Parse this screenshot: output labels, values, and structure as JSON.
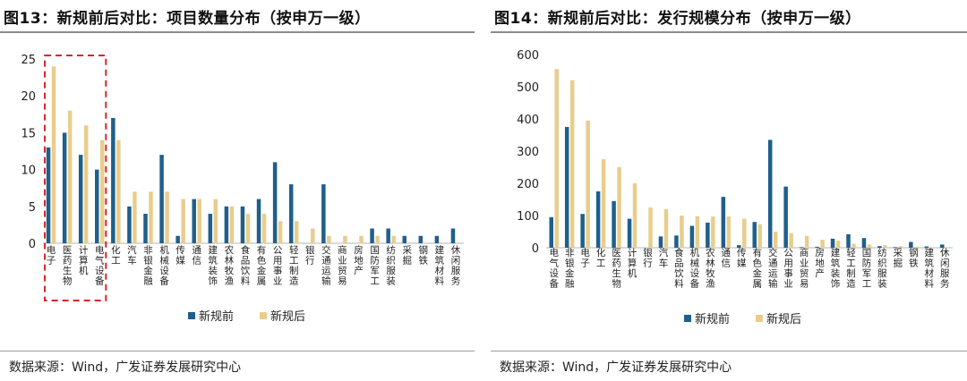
{
  "figures": [
    {
      "title": "图13：新规前后对比：项目数量分布（按申万一级）",
      "source": "数据来源：Wind，广发证券发展研究中心"
    },
    {
      "title": "图14：新规前后对比：发行规模分布（按申万一级）",
      "source": "数据来源：Wind，广发证券发展研究中心"
    }
  ],
  "colors": {
    "before": "#1f5f8b",
    "after": "#e8cd8d",
    "highlight": "#d62828"
  },
  "chart_data": [
    {
      "type": "bar",
      "ylim": [
        0,
        25
      ],
      "yticks": [
        0,
        5,
        10,
        15,
        20,
        25
      ],
      "highlight_box": true,
      "categories": [
        "电子",
        "医药生物",
        "计算机",
        "电气设备",
        "化工",
        "汽车",
        "非银金融",
        "机械设备",
        "传媒",
        "通信",
        "建筑装饰",
        "农林牧渔",
        "食品饮料",
        "有色金属",
        "公用事业",
        "轻工制造",
        "银行",
        "交通运输",
        "商业贸易",
        "房地产",
        "国防军工",
        "纺织服装",
        "采掘",
        "钢铁",
        "建筑材料",
        "休闲服务"
      ],
      "series": [
        {
          "name": "新规前",
          "values": [
            13,
            15,
            12,
            10,
            17,
            5,
            4,
            12,
            1,
            6,
            4,
            5,
            5,
            6,
            11,
            8,
            0,
            8,
            0,
            0,
            2,
            2,
            1,
            1,
            1,
            2
          ]
        },
        {
          "name": "新规后",
          "values": [
            24,
            18,
            16,
            14,
            14,
            7,
            7,
            7,
            6,
            6,
            6,
            5,
            4,
            4,
            3,
            3,
            2,
            1,
            1,
            1,
            1,
            1,
            0,
            0,
            0,
            0
          ]
        }
      ]
    },
    {
      "type": "bar",
      "ylim": [
        0,
        600
      ],
      "yticks": [
        0,
        100,
        200,
        300,
        400,
        500,
        600
      ],
      "highlight_box": false,
      "categories": [
        "电气设备",
        "非银金融",
        "电子",
        "化工",
        "医药生物",
        "计算机",
        "银行",
        "汽车",
        "食品饮料",
        "机械设备",
        "农林牧渔",
        "通信",
        "传媒",
        "有色金属",
        "交通运输",
        "公用事业",
        "商业贸易",
        "房地产",
        "建筑装饰",
        "轻工制造",
        "国防军工",
        "纺织服装",
        "采掘",
        "钢铁",
        "建筑材料",
        "休闲服务"
      ],
      "series": [
        {
          "name": "新规前",
          "values": [
            95,
            375,
            105,
            175,
            145,
            90,
            0,
            35,
            38,
            68,
            78,
            158,
            8,
            80,
            335,
            190,
            2,
            3,
            28,
            42,
            30,
            5,
            2,
            18,
            4,
            10
          ]
        },
        {
          "name": "新规后",
          "values": [
            555,
            520,
            395,
            275,
            250,
            200,
            125,
            120,
            100,
            98,
            97,
            97,
            90,
            73,
            50,
            45,
            37,
            25,
            22,
            12,
            10,
            8,
            5,
            3,
            2,
            1
          ]
        }
      ]
    }
  ]
}
